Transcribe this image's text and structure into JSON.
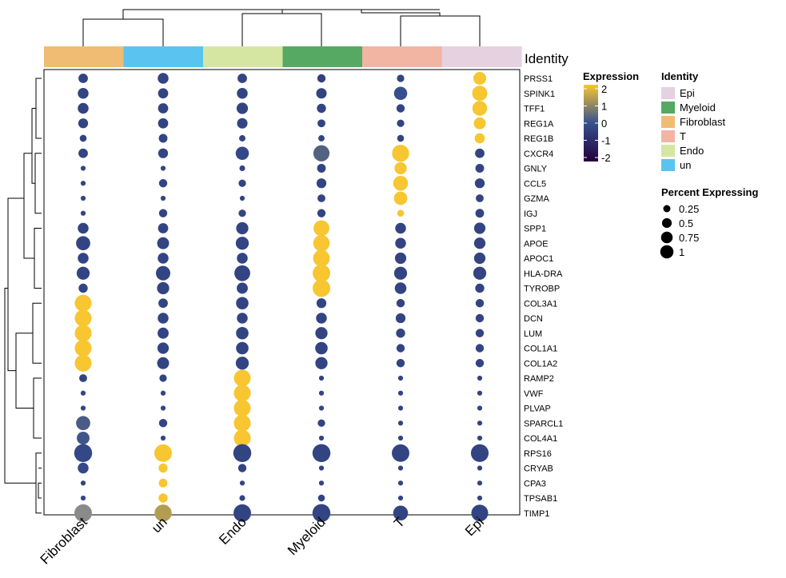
{
  "chart_data": {
    "type": "dotplot",
    "columns": [
      "Fibroblast",
      "un",
      "Endo",
      "Myeloid",
      "T",
      "Epi"
    ],
    "genes": [
      "PRSS1",
      "SPINK1",
      "TFF1",
      "REG1A",
      "REG1B",
      "CXCR4",
      "GNLY",
      "CCL5",
      "GZMA",
      "IGJ",
      "SPP1",
      "APOE",
      "APOC1",
      "HLA-DRA",
      "TYROBP",
      "COL3A1",
      "DCN",
      "LUM",
      "COL1A1",
      "COL1A2",
      "RAMP2",
      "VWF",
      "PLVAP",
      "SPARCL1",
      "COL4A1",
      "RPS16",
      "CRYAB",
      "CPA3",
      "TPSAB1",
      "TIMP1"
    ],
    "expression": [
      [
        -0.3,
        -0.3,
        -0.3,
        -0.4,
        -0.3,
        2.0
      ],
      [
        -0.3,
        -0.3,
        -0.3,
        -0.3,
        0.0,
        2.0
      ],
      [
        -0.3,
        -0.3,
        -0.3,
        -0.3,
        -0.3,
        2.0
      ],
      [
        -0.3,
        -0.3,
        -0.3,
        -0.3,
        -0.3,
        2.0
      ],
      [
        -0.3,
        -0.3,
        -0.3,
        -0.3,
        -0.3,
        2.0
      ],
      [
        -0.3,
        -0.3,
        -0.2,
        0.3,
        2.0,
        -0.3
      ],
      [
        -0.3,
        -0.3,
        -0.3,
        -0.3,
        2.0,
        -0.3
      ],
      [
        -0.3,
        -0.3,
        -0.3,
        -0.3,
        2.0,
        -0.3
      ],
      [
        -0.3,
        -0.3,
        -0.3,
        -0.3,
        2.0,
        -0.3
      ],
      [
        -0.3,
        -0.3,
        -0.3,
        -0.3,
        2.0,
        -0.3
      ],
      [
        -0.3,
        -0.3,
        -0.3,
        2.0,
        -0.3,
        -0.3
      ],
      [
        -0.3,
        -0.3,
        -0.3,
        2.0,
        -0.3,
        -0.3
      ],
      [
        -0.3,
        -0.3,
        -0.3,
        2.0,
        -0.3,
        -0.3
      ],
      [
        -0.3,
        -0.3,
        -0.3,
        2.0,
        -0.3,
        -0.3
      ],
      [
        -0.3,
        -0.3,
        -0.3,
        2.0,
        -0.3,
        -0.3
      ],
      [
        2.0,
        -0.3,
        -0.3,
        -0.3,
        -0.3,
        -0.3
      ],
      [
        2.0,
        -0.3,
        -0.3,
        -0.3,
        -0.3,
        -0.3
      ],
      [
        2.0,
        -0.3,
        -0.3,
        -0.3,
        -0.3,
        -0.3
      ],
      [
        2.0,
        -0.3,
        -0.3,
        -0.3,
        -0.3,
        -0.3
      ],
      [
        2.0,
        -0.3,
        -0.3,
        -0.3,
        -0.3,
        -0.3
      ],
      [
        -0.3,
        -0.3,
        2.0,
        -0.3,
        -0.3,
        -0.3
      ],
      [
        -0.3,
        -0.3,
        2.0,
        -0.3,
        -0.3,
        -0.3
      ],
      [
        -0.3,
        -0.3,
        2.0,
        -0.3,
        -0.3,
        -0.3
      ],
      [
        0.2,
        -0.3,
        2.0,
        -0.3,
        -0.3,
        -0.3
      ],
      [
        0.1,
        -0.3,
        2.0,
        -0.3,
        -0.3,
        -0.3
      ],
      [
        -0.2,
        2.0,
        -0.3,
        -0.3,
        -0.3,
        -0.3
      ],
      [
        -0.2,
        2.0,
        -0.3,
        -0.3,
        -0.3,
        -0.3
      ],
      [
        -0.3,
        2.0,
        -0.3,
        -0.3,
        -0.3,
        -0.3
      ],
      [
        -0.3,
        2.0,
        -0.3,
        -0.3,
        -0.3,
        -0.3
      ],
      [
        0.5,
        1.3,
        -0.3,
        -0.3,
        -0.3,
        -0.3
      ]
    ],
    "percent_expressing": [
      [
        0.22,
        0.3,
        0.22,
        0.16,
        0.12,
        0.45
      ],
      [
        0.3,
        0.26,
        0.3,
        0.28,
        0.48,
        0.65
      ],
      [
        0.3,
        0.26,
        0.34,
        0.2,
        0.16,
        0.62
      ],
      [
        0.24,
        0.26,
        0.28,
        0.14,
        0.12,
        0.38
      ],
      [
        0.1,
        0.18,
        0.08,
        0.08,
        0.1,
        0.26
      ],
      [
        0.22,
        0.24,
        0.48,
        0.75,
        0.85,
        0.22
      ],
      [
        0.04,
        0.04,
        0.06,
        0.18,
        0.4,
        0.18
      ],
      [
        0.04,
        0.16,
        0.12,
        0.24,
        0.62,
        0.24
      ],
      [
        0.04,
        0.04,
        0.04,
        0.14,
        0.5,
        0.14
      ],
      [
        0.04,
        0.16,
        0.12,
        0.16,
        0.1,
        0.18
      ],
      [
        0.3,
        0.26,
        0.4,
        0.72,
        0.3,
        0.34
      ],
      [
        0.56,
        0.38,
        0.46,
        0.78,
        0.3,
        0.34
      ],
      [
        0.3,
        0.3,
        0.3,
        0.8,
        0.34,
        0.34
      ],
      [
        0.46,
        0.58,
        0.72,
        0.9,
        0.46,
        0.46
      ],
      [
        0.2,
        0.4,
        0.32,
        0.9,
        0.36,
        0.2
      ],
      [
        0.82,
        0.22,
        0.42,
        0.24,
        0.16,
        0.16
      ],
      [
        0.82,
        0.3,
        0.3,
        0.3,
        0.24,
        0.16
      ],
      [
        0.82,
        0.32,
        0.42,
        0.4,
        0.2,
        0.16
      ],
      [
        0.82,
        0.34,
        0.42,
        0.42,
        0.16,
        0.16
      ],
      [
        0.82,
        0.38,
        0.46,
        0.4,
        0.16,
        0.16
      ],
      [
        0.14,
        0.12,
        0.82,
        0.04,
        0.04,
        0.04
      ],
      [
        0.04,
        0.04,
        0.82,
        0.04,
        0.04,
        0.04
      ],
      [
        0.04,
        0.04,
        0.82,
        0.04,
        0.04,
        0.04
      ],
      [
        0.56,
        0.16,
        0.82,
        0.12,
        0.04,
        0.04
      ],
      [
        0.44,
        0.04,
        0.82,
        0.04,
        0.04,
        0.04
      ],
      [
        0.95,
        0.9,
        0.95,
        0.95,
        0.9,
        0.92
      ],
      [
        0.3,
        0.2,
        0.16,
        0.04,
        0.04,
        0.04
      ],
      [
        0.04,
        0.18,
        0.04,
        0.04,
        0.04,
        0.04
      ],
      [
        0.04,
        0.2,
        0.06,
        0.1,
        0.04,
        0.04
      ],
      [
        0.9,
        0.85,
        0.9,
        0.95,
        0.62,
        0.82
      ]
    ],
    "gray_cells": [
      [
        29,
        0
      ]
    ],
    "identity_annotation": {
      "label": "Identity",
      "colors": {
        "Fibroblast": "#f0bc73",
        "un": "#5bc3ef",
        "Endo": "#d5e6a3",
        "Myeloid": "#55a962",
        "T": "#f2b4a3",
        "Epi": "#e5d1df"
      }
    },
    "expression_legend": {
      "title": "Expression",
      "range": [
        -2,
        2
      ],
      "ticks": [
        "2",
        "1",
        "0",
        "-1",
        "-2"
      ],
      "colors": [
        "#24003d",
        "#36508f",
        "#f7c630"
      ]
    },
    "identity_legend": {
      "title": "Identity",
      "items": [
        {
          "label": "Epi",
          "color": "#e5d1df"
        },
        {
          "label": "Myeloid",
          "color": "#55a962"
        },
        {
          "label": "Fibroblast",
          "color": "#f0bc73"
        },
        {
          "label": "T",
          "color": "#f2b4a3"
        },
        {
          "label": "Endo",
          "color": "#d5e6a3"
        },
        {
          "label": "un",
          "color": "#5bc3ef"
        }
      ]
    },
    "size_legend": {
      "title": "Percent Expressing",
      "values": [
        0.25,
        0.5,
        0.75,
        1
      ],
      "labels": [
        "0.25",
        "0.5",
        "0.75",
        "1"
      ]
    },
    "gray_color": "#8a8a8a"
  }
}
